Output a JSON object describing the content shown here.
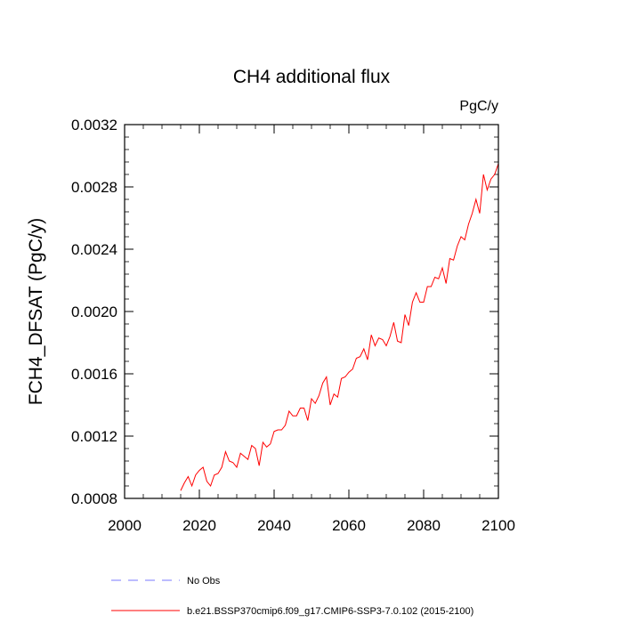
{
  "chart_data": {
    "type": "line",
    "title": "CH4 additional flux",
    "units_label": "PgC/y",
    "xlabel": "",
    "ylabel": "FCH4_DFSAT  (PgC/y)",
    "xlim": [
      2000,
      2100
    ],
    "ylim": [
      0.0008,
      0.0032
    ],
    "xticks": [
      2000,
      2020,
      2040,
      2060,
      2080,
      2100
    ],
    "xtick_labels": [
      "2000",
      "2020",
      "2040",
      "2060",
      "2080",
      "2100"
    ],
    "yticks": [
      0.0008,
      0.0012,
      0.0016,
      0.002,
      0.0024,
      0.0028,
      0.0032
    ],
    "ytick_labels": [
      "0.0008",
      "0.0012",
      "0.0016",
      "0.0020",
      "0.0024",
      "0.0028",
      "0.0032"
    ],
    "grid": false,
    "legend_position": "bottom-left",
    "series": [
      {
        "name": "No Obs",
        "color": "#7a7aff",
        "style": "dashed",
        "x": [],
        "y": []
      },
      {
        "name": "b.e21.BSSP370cmip6.f09_g17.CMIP6-SSP3-7.0.102 (2015-2100)",
        "color": "#ff0000",
        "style": "solid",
        "x": [
          2015,
          2016,
          2017,
          2018,
          2019,
          2020,
          2021,
          2022,
          2023,
          2024,
          2025,
          2026,
          2027,
          2028,
          2029,
          2030,
          2031,
          2032,
          2033,
          2034,
          2035,
          2036,
          2037,
          2038,
          2039,
          2040,
          2041,
          2042,
          2043,
          2044,
          2045,
          2046,
          2047,
          2048,
          2049,
          2050,
          2051,
          2052,
          2053,
          2054,
          2055,
          2056,
          2057,
          2058,
          2059,
          2060,
          2061,
          2062,
          2063,
          2064,
          2065,
          2066,
          2067,
          2068,
          2069,
          2070,
          2071,
          2072,
          2073,
          2074,
          2075,
          2076,
          2077,
          2078,
          2079,
          2080,
          2081,
          2082,
          2083,
          2084,
          2085,
          2086,
          2087,
          2088,
          2089,
          2090,
          2091,
          2092,
          2093,
          2094,
          2095,
          2096,
          2097,
          2098,
          2099,
          2100
        ],
        "y": [
          0.00085,
          0.0009,
          0.00094,
          0.00088,
          0.00095,
          0.00098,
          0.001,
          0.00091,
          0.00088,
          0.00095,
          0.00096,
          0.001,
          0.0011,
          0.00104,
          0.00103,
          0.001,
          0.00109,
          0.00107,
          0.00105,
          0.00114,
          0.00112,
          0.00101,
          0.00116,
          0.00113,
          0.00115,
          0.00123,
          0.00124,
          0.00124,
          0.00127,
          0.00136,
          0.00133,
          0.00133,
          0.00138,
          0.00138,
          0.0013,
          0.00144,
          0.00141,
          0.00146,
          0.00154,
          0.00158,
          0.0014,
          0.00147,
          0.00145,
          0.00157,
          0.00158,
          0.00161,
          0.00163,
          0.0017,
          0.00171,
          0.00176,
          0.00169,
          0.00185,
          0.00178,
          0.00183,
          0.00182,
          0.00178,
          0.00184,
          0.00193,
          0.00181,
          0.0018,
          0.00198,
          0.00191,
          0.00206,
          0.00212,
          0.00206,
          0.00206,
          0.00216,
          0.00216,
          0.00222,
          0.00221,
          0.00228,
          0.00218,
          0.00234,
          0.00233,
          0.00242,
          0.00248,
          0.00246,
          0.00256,
          0.00263,
          0.00272,
          0.00263,
          0.00288,
          0.00278,
          0.00285,
          0.00288,
          0.00295
        ]
      }
    ]
  }
}
